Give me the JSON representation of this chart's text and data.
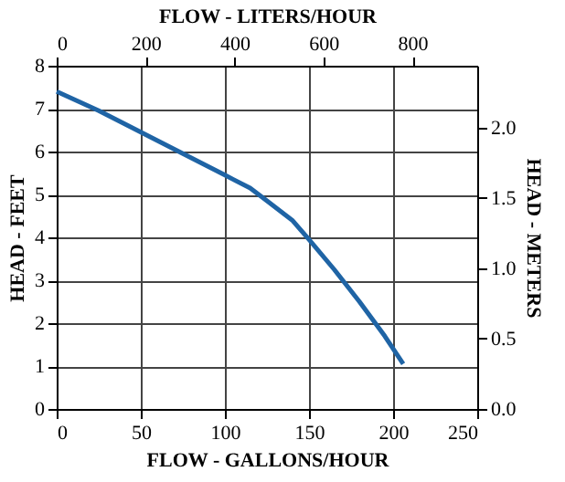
{
  "chart_data": {
    "type": "line",
    "xlabel": "FLOW - GALLONS/HOUR",
    "ylabel": "HEAD - FEET",
    "x2label": "FLOW - LITERS/HOUR",
    "y2label": "HEAD - METERS",
    "x": [
      0,
      25,
      50,
      75,
      100,
      115,
      125,
      140,
      150,
      165,
      180,
      195,
      206
    ],
    "series": [
      {
        "color": "#1f64a5",
        "values": [
          7.4,
          6.95,
          6.45,
          5.95,
          5.45,
          5.15,
          4.85,
          4.4,
          3.95,
          3.25,
          2.5,
          1.7,
          1.05
        ]
      }
    ],
    "xlim": [
      0,
      250
    ],
    "xticks": [
      0,
      50,
      100,
      150,
      200,
      250
    ],
    "ylim": [
      0,
      8
    ],
    "yticks": [
      0,
      1,
      2,
      3,
      4,
      5,
      6,
      7,
      8
    ],
    "x2lim": [
      0,
      946
    ],
    "x2ticks": [
      0,
      200,
      400,
      600,
      800
    ],
    "y2lim": [
      0,
      2.438
    ],
    "y2ticks": [
      {
        "value": 0,
        "label": "0.0"
      },
      {
        "value": 0.5,
        "label": "0.5"
      },
      {
        "value": 1.0,
        "label": "1.0"
      },
      {
        "value": 1.5,
        "label": "1.5"
      },
      {
        "value": 2.0,
        "label": "2.0"
      }
    ],
    "grid": true,
    "marker": "none",
    "line_style": "solid"
  }
}
